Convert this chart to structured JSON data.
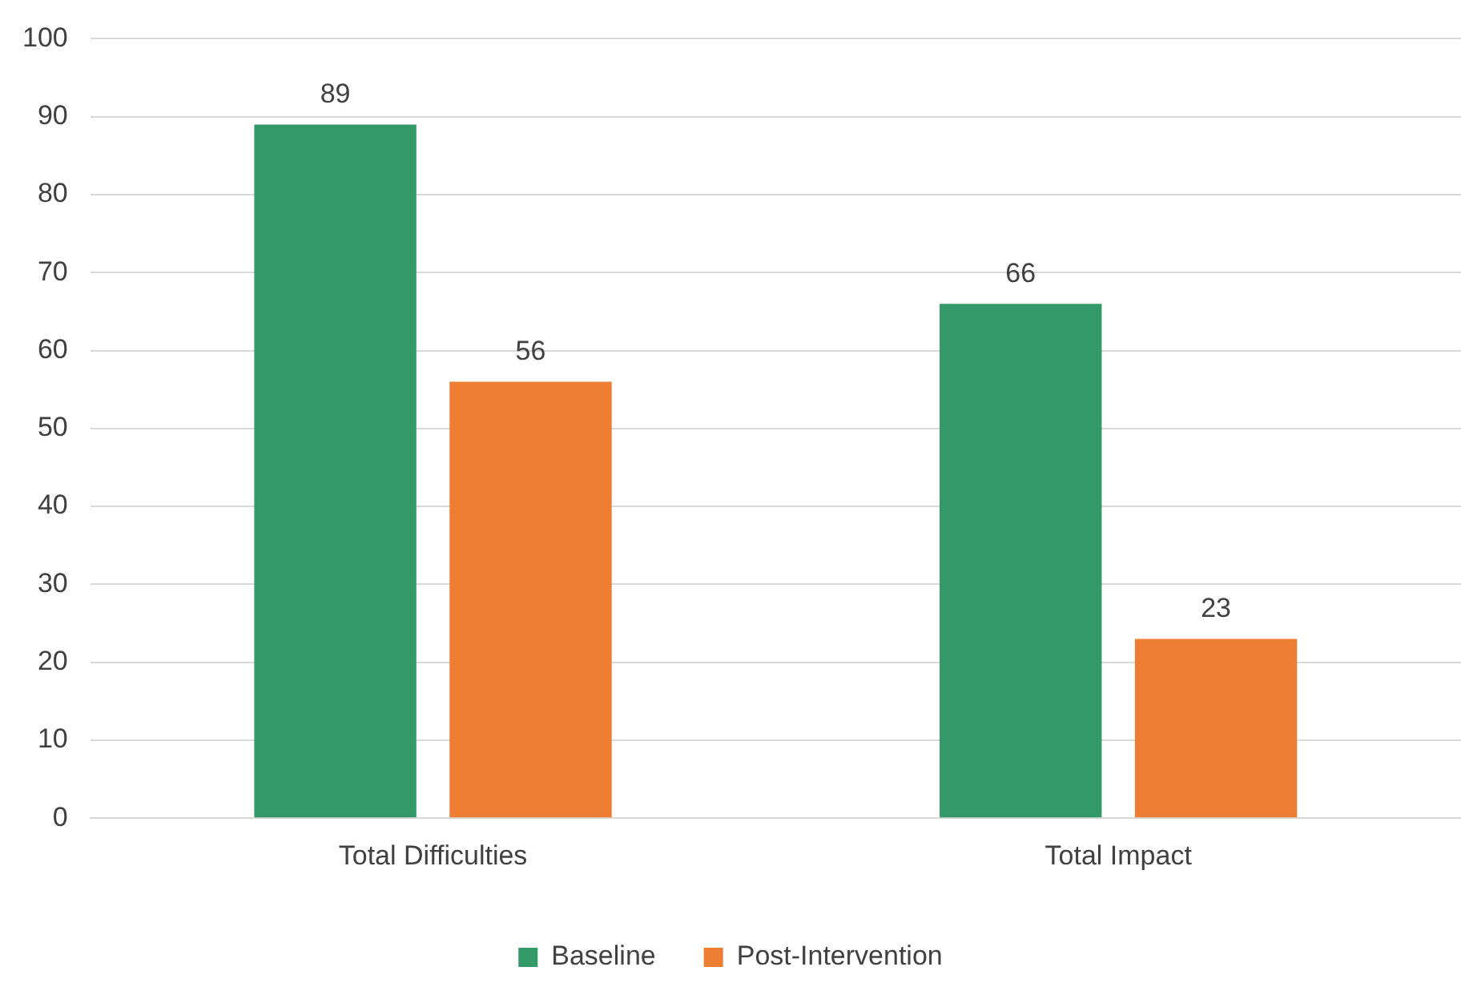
{
  "chart_data": {
    "type": "bar",
    "categories": [
      "Total Difficulties",
      "Total Impact"
    ],
    "series": [
      {
        "name": "Baseline",
        "color": "#339966",
        "values": [
          89,
          66
        ]
      },
      {
        "name": "Post-Intervention",
        "color": "#ed7d31",
        "values": [
          56,
          23
        ]
      }
    ],
    "ylim": [
      0,
      100
    ],
    "yticks": [
      0,
      10,
      20,
      30,
      40,
      50,
      60,
      70,
      80,
      90,
      100
    ],
    "grid": "y",
    "legend": "bottom",
    "data_labels": true
  }
}
